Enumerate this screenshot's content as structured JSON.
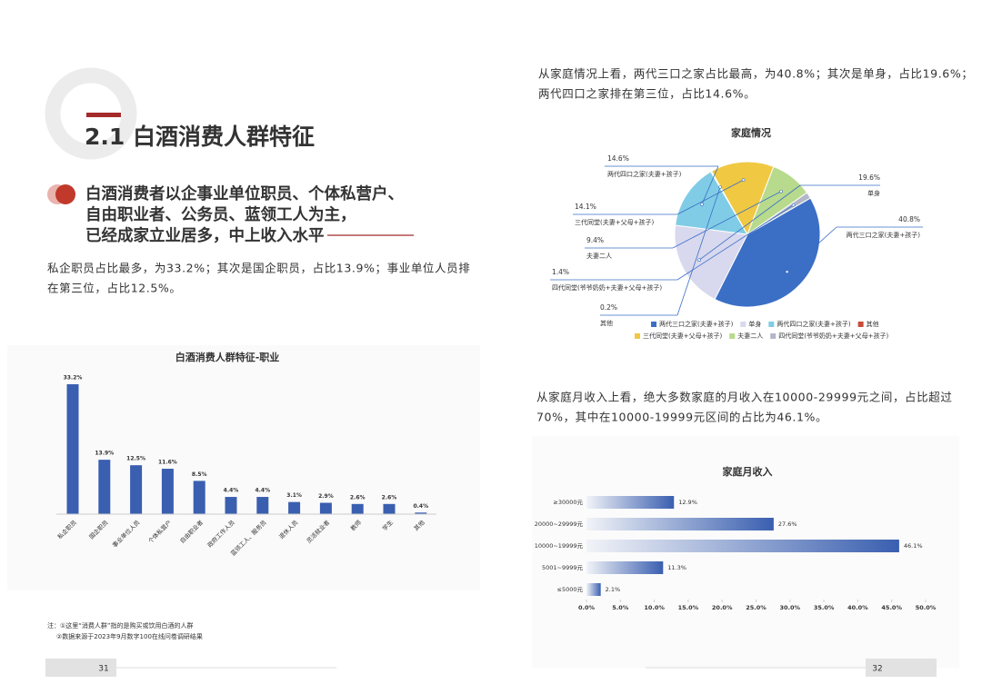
{
  "left": {
    "section_title": "2.1 白酒消费人群特征",
    "headline": [
      "白酒消费者以企事业单位职员、个体私营户、",
      "自由职业者、公务员、蓝领工人为主，",
      "已经成家立业居多，中上收入水平"
    ],
    "paragraph": [
      "私企职员占比最多，为33.2%；其次是国企职员，占比13.9%；事业单位人员排",
      "在第三位，占比12.5%。"
    ],
    "notes": [
      "注：①这里“消费人群”指的是购买或饮用白酒的人群",
      "②数据来源于2023年9月数字100在线问卷调研结果"
    ],
    "page_number": "31"
  },
  "right": {
    "paragraph_1": [
      "从家庭情况上看，两代三口之家占比最高，为40.8%；其次是单身，占比19.6%；",
      "两代四口之家排在第三位，占比14.6%。"
    ],
    "paragraph_2": [
      "从家庭月收入上看，绝大多数家庭的月收入在10000-29999元之间，占比超过",
      "70%，其中在10000-19999元区间的占比为46.1%。"
    ],
    "page_number": "32"
  },
  "chart_data": [
    {
      "type": "bar",
      "title": "白酒消费人群特征-职业",
      "categories": [
        "私企职员",
        "国企职员",
        "事业单位人员",
        "个体私营户",
        "自由职业者",
        "政府工作人员",
        "蓝领工人、服务员",
        "退休人员",
        "灵活就业者",
        "教师",
        "学生",
        "其他"
      ],
      "values": [
        33.2,
        13.9,
        12.5,
        11.6,
        8.5,
        4.4,
        4.4,
        3.1,
        2.9,
        2.6,
        2.6,
        0.4
      ],
      "value_labels": [
        "33.2%",
        "13.9%",
        "12.5%",
        "11.6%",
        "8.5%",
        "4.4%",
        "4.4%",
        "3.1%",
        "2.9%",
        "2.6%",
        "2.6%",
        "0.4%"
      ],
      "color": "#3a5fb0"
    },
    {
      "type": "pie",
      "title": "家庭情况",
      "categories": [
        "两代三口之家(夫妻+孩子)",
        "单身",
        "两代四口之家(夫妻+孩子)",
        "其他",
        "三代同堂(夫妻+父母+孩子)",
        "夫妻二人",
        "四代同堂(爷爷奶奶+夫妻+父母+孩子)"
      ],
      "values": [
        40.8,
        19.6,
        14.6,
        0.2,
        14.1,
        9.4,
        1.4
      ],
      "value_labels": [
        "40.8%",
        "19.6%",
        "14.6%",
        "0.2%",
        "14.1%",
        "9.4%",
        "1.4%"
      ],
      "colors": [
        "#3b6fc6",
        "#d8d8ee",
        "#80cce6",
        "#c94c3a",
        "#f0c842",
        "#b8da8c",
        "#b2b6c8"
      ]
    },
    {
      "type": "hbar",
      "title": "家庭月收入",
      "categories": [
        "≥30000元",
        "20000~29999元",
        "10000~19999元",
        "5001~9999元",
        "≤5000元"
      ],
      "values": [
        12.9,
        27.6,
        46.1,
        11.3,
        2.1
      ],
      "value_labels": [
        "12.9%",
        "27.6%",
        "46.1%",
        "11.3%",
        "2.1%"
      ],
      "color": "#3a5fb0",
      "xlim": [
        0,
        50
      ],
      "xticks": [
        {
          "value": 0,
          "label": "0.0%"
        },
        {
          "value": 5,
          "label": "5.0%"
        },
        {
          "value": 10,
          "label": "10.0%"
        },
        {
          "value": 15,
          "label": "15.0%"
        },
        {
          "value": 20,
          "label": "20.0%"
        },
        {
          "value": 25,
          "label": "25.0%"
        },
        {
          "value": 30,
          "label": "30.0%"
        },
        {
          "value": 35,
          "label": "35.0%"
        },
        {
          "value": 40,
          "label": "40.0%"
        },
        {
          "value": 45,
          "label": "45.0%"
        },
        {
          "value": 50,
          "label": "50.0%"
        }
      ]
    }
  ]
}
